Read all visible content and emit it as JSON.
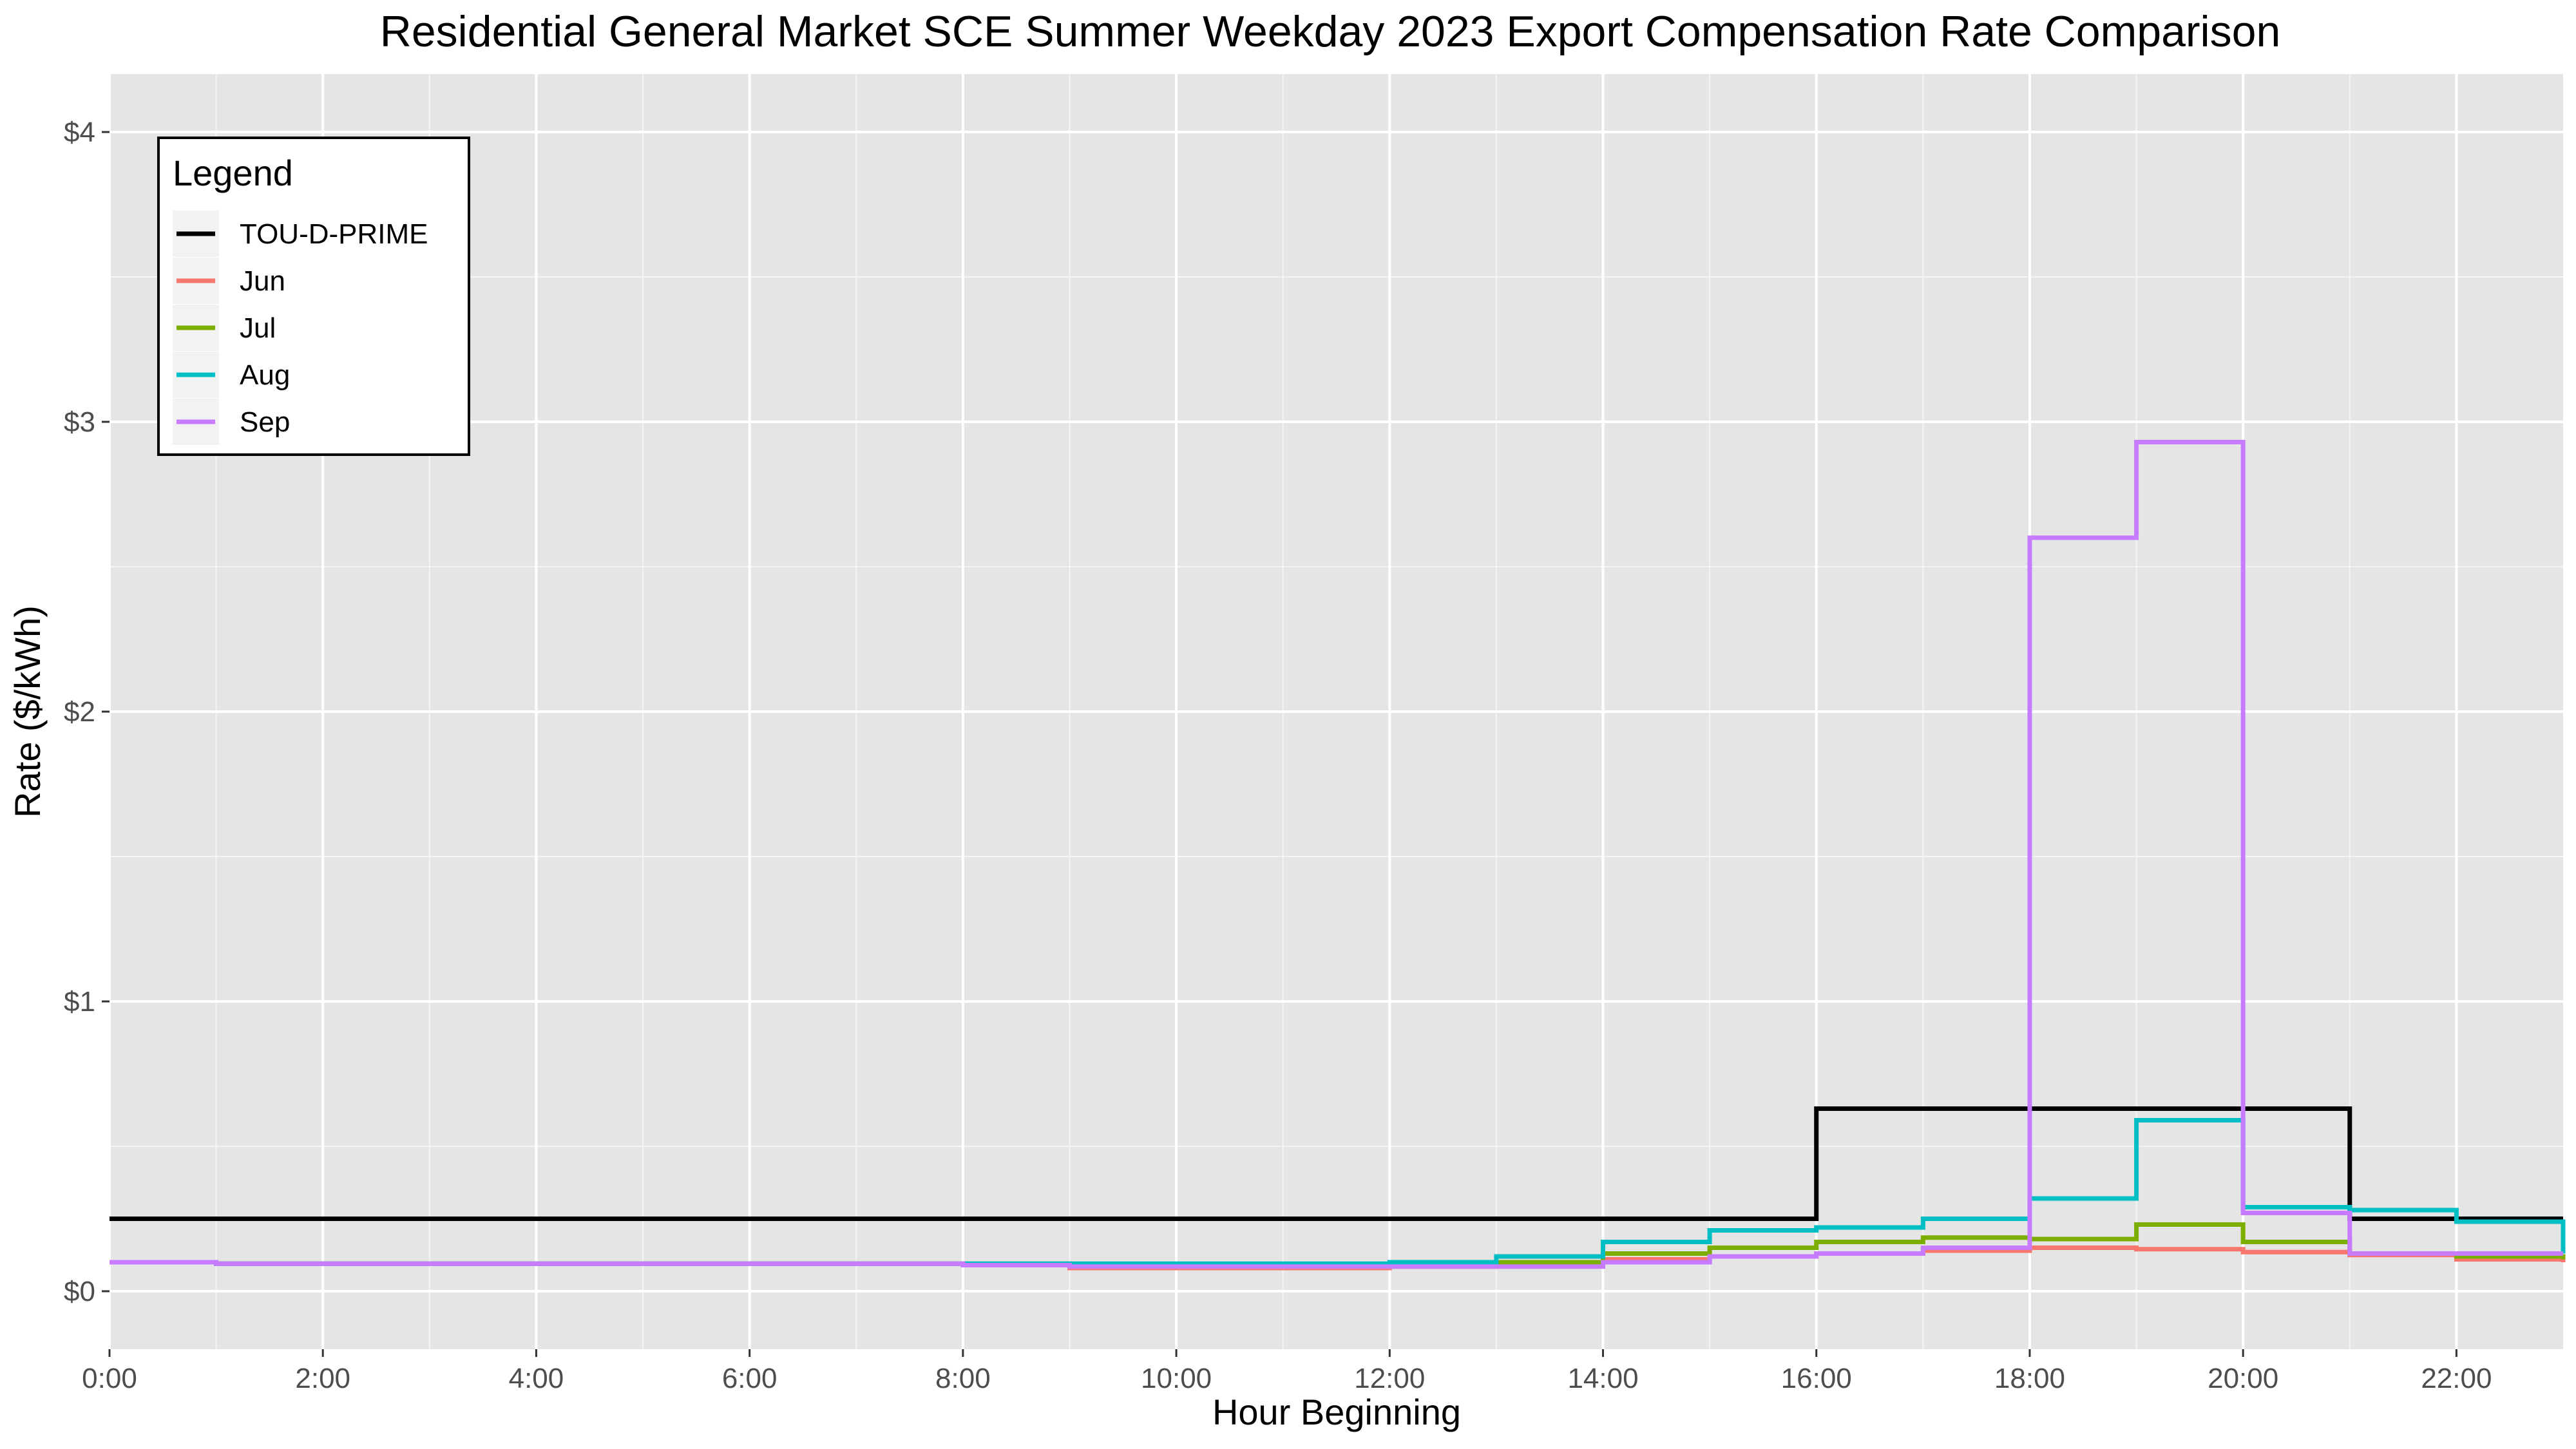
{
  "chart_data": {
    "type": "line",
    "line_style": "step",
    "title": "Residential General Market SCE Summer Weekday 2023 Export Compensation Rate Comparison",
    "xlabel": "Hour Beginning",
    "ylabel": "Rate ($/kWh)",
    "x": [
      0,
      1,
      2,
      3,
      4,
      5,
      6,
      7,
      8,
      9,
      10,
      11,
      12,
      13,
      14,
      15,
      16,
      17,
      18,
      19,
      20,
      21,
      22,
      23
    ],
    "xlim": [
      0,
      23
    ],
    "ylim": [
      -0.2,
      4.2
    ],
    "x_ticks": [
      0,
      2,
      4,
      6,
      8,
      10,
      12,
      14,
      16,
      18,
      20,
      22
    ],
    "x_tick_labels": [
      "0:00",
      "2:00",
      "4:00",
      "6:00",
      "8:00",
      "10:00",
      "12:00",
      "14:00",
      "16:00",
      "18:00",
      "20:00",
      "22:00"
    ],
    "y_ticks": [
      0,
      1,
      2,
      3,
      4
    ],
    "y_tick_labels": [
      "$0",
      "$1",
      "$2",
      "$3",
      "$4"
    ],
    "grid": true,
    "panel_background": "#e5e5e5",
    "legend": {
      "title": "Legend",
      "position": "top-left"
    },
    "series": [
      {
        "name": "TOU-D-PRIME",
        "color": "#000000",
        "values": [
          0.25,
          0.25,
          0.25,
          0.25,
          0.25,
          0.25,
          0.25,
          0.25,
          0.25,
          0.25,
          0.25,
          0.25,
          0.25,
          0.25,
          0.25,
          0.25,
          0.63,
          0.63,
          0.63,
          0.63,
          0.63,
          0.25,
          0.25,
          0.25
        ]
      },
      {
        "name": "Jun",
        "color": "#f8766d",
        "values": [
          0.1,
          0.095,
          0.095,
          0.095,
          0.095,
          0.095,
          0.095,
          0.095,
          0.09,
          0.08,
          0.08,
          0.08,
          0.085,
          0.09,
          0.11,
          0.12,
          0.13,
          0.14,
          0.15,
          0.145,
          0.135,
          0.125,
          0.11,
          0.1
        ]
      },
      {
        "name": "Jul",
        "color": "#7cae00",
        "values": [
          0.1,
          0.095,
          0.095,
          0.095,
          0.095,
          0.095,
          0.095,
          0.095,
          0.095,
          0.09,
          0.09,
          0.09,
          0.09,
          0.1,
          0.13,
          0.15,
          0.17,
          0.185,
          0.18,
          0.23,
          0.17,
          0.13,
          0.12,
          0.11
        ]
      },
      {
        "name": "Aug",
        "color": "#00bfc4",
        "values": [
          0.1,
          0.095,
          0.095,
          0.095,
          0.095,
          0.095,
          0.095,
          0.095,
          0.095,
          0.095,
          0.095,
          0.095,
          0.1,
          0.12,
          0.17,
          0.21,
          0.22,
          0.25,
          0.32,
          0.59,
          0.29,
          0.28,
          0.24,
          0.13
        ]
      },
      {
        "name": "Sep",
        "color": "#c77cff",
        "values": [
          0.1,
          0.095,
          0.095,
          0.095,
          0.095,
          0.095,
          0.095,
          0.095,
          0.09,
          0.085,
          0.085,
          0.085,
          0.085,
          0.085,
          0.1,
          0.12,
          0.13,
          0.15,
          2.6,
          2.93,
          0.27,
          0.13,
          0.13,
          0.13
        ]
      }
    ]
  }
}
